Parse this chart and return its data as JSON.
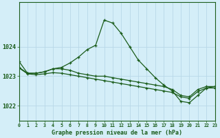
{
  "title": "Graphe pression niveau de la mer (hPa)",
  "background_color": "#d4eef8",
  "grid_color": "#b8d8e8",
  "line_color": "#1a5c1a",
  "xlim": [
    0,
    23
  ],
  "ylim": [
    1021.5,
    1025.5
  ],
  "yticks": [
    1022,
    1023,
    1024
  ],
  "xtick_labels": [
    "0",
    "1",
    "2",
    "3",
    "4",
    "5",
    "6",
    "7",
    "8",
    "9",
    "10",
    "11",
    "12",
    "13",
    "14",
    "15",
    "16",
    "17",
    "18",
    "19",
    "20",
    "21",
    "22",
    "23"
  ],
  "series1_x": [
    0,
    1,
    2,
    3,
    4,
    5,
    6,
    7,
    8,
    9,
    10,
    11,
    12,
    13,
    14,
    15,
    16,
    17,
    18,
    19,
    20,
    21,
    22,
    23
  ],
  "series1_y": [
    1023.5,
    1023.1,
    1023.1,
    1023.15,
    1023.25,
    1023.3,
    1023.45,
    1023.65,
    1023.9,
    1024.05,
    1024.9,
    1024.8,
    1024.45,
    1024.0,
    1023.55,
    1023.25,
    1022.95,
    1022.7,
    1022.5,
    1022.15,
    1022.1,
    1022.35,
    1022.6,
    1022.65
  ],
  "series2_x": [
    0,
    1,
    2,
    3,
    4,
    5,
    6,
    7,
    8,
    9,
    10,
    11,
    12,
    13,
    14,
    15,
    16,
    17,
    18,
    19,
    20,
    21,
    22,
    23
  ],
  "series2_y": [
    1023.3,
    1023.1,
    1023.1,
    1023.15,
    1023.25,
    1023.25,
    1023.2,
    1023.1,
    1023.05,
    1023.0,
    1023.0,
    1022.95,
    1022.9,
    1022.85,
    1022.8,
    1022.75,
    1022.7,
    1022.65,
    1022.55,
    1022.35,
    1022.3,
    1022.55,
    1022.65,
    1022.65
  ],
  "series3_x": [
    0,
    1,
    2,
    3,
    4,
    5,
    6,
    7,
    8,
    9,
    10,
    11,
    12,
    13,
    14,
    15,
    16,
    17,
    18,
    19,
    20,
    21,
    22,
    23
  ],
  "series3_y": [
    1023.28,
    1023.08,
    1023.05,
    1023.08,
    1023.12,
    1023.1,
    1023.05,
    1023.0,
    1022.95,
    1022.9,
    1022.85,
    1022.8,
    1022.75,
    1022.7,
    1022.65,
    1022.6,
    1022.55,
    1022.5,
    1022.45,
    1022.3,
    1022.25,
    1022.48,
    1022.6,
    1022.6
  ]
}
